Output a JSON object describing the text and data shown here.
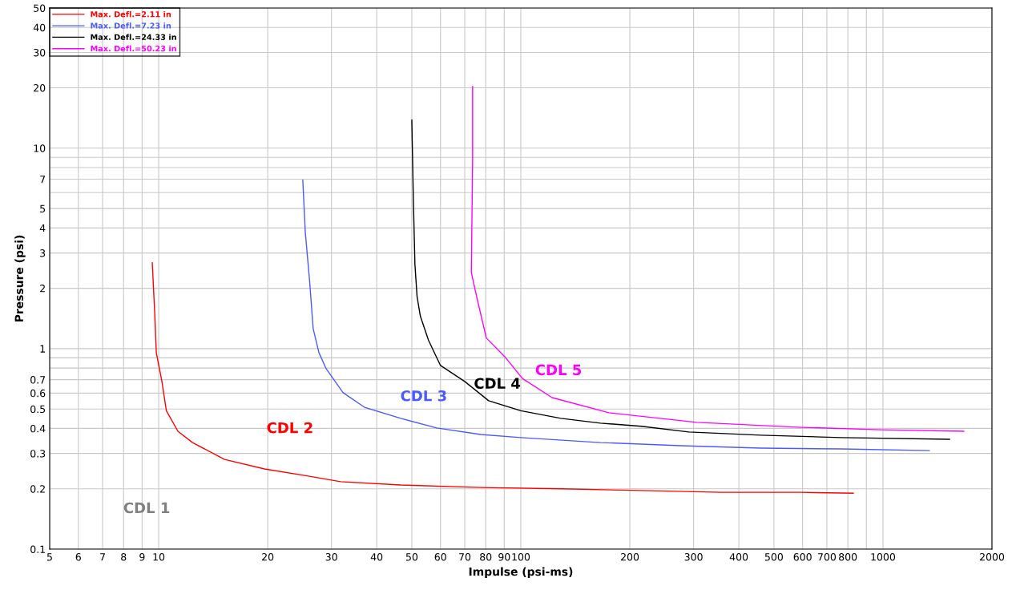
{
  "chart_data": {
    "type": "line",
    "xlabel": "Impulse (psi-ms)",
    "ylabel": "Pressure (psi)",
    "log": "xy",
    "grid": true,
    "legend": "top left",
    "line_style": "solid",
    "marker": "none",
    "xlim": [
      5,
      2000
    ],
    "ylim": [
      0.1,
      50
    ],
    "xticks": [
      5,
      6,
      7,
      8,
      9,
      10,
      20,
      30,
      40,
      50,
      60,
      70,
      80,
      90,
      100,
      200,
      300,
      400,
      500,
      600,
      700,
      800,
      {
        "value": 900,
        "label": null
      },
      1000,
      2000
    ],
    "yticks": [
      0.1,
      0.2,
      0.3,
      0.4,
      0.5,
      0.6,
      0.7,
      {
        "value": 0.8,
        "label": null
      },
      {
        "value": 0.9,
        "label": null
      },
      1,
      2,
      3,
      4,
      5,
      {
        "value": 6,
        "label": null
      },
      7,
      {
        "value": 8,
        "label": null
      },
      {
        "value": 9,
        "label": null
      },
      10,
      20,
      30,
      40,
      50
    ],
    "series": [
      {
        "name": "Max. Defl.=2.11 in",
        "color": "#ff0000",
        "x": [
          9.6,
          9.75,
          9.85,
          10.2,
          10.5,
          11.3,
          12.4,
          15.2,
          19.6,
          25.3,
          31.8,
          46.6,
          77.5,
          129,
          215,
          357,
          594,
          828
        ],
        "values": [
          2.68,
          1.51,
          0.955,
          0.69,
          0.49,
          0.387,
          0.34,
          0.28,
          0.251,
          0.233,
          0.217,
          0.209,
          0.203,
          0.2,
          0.196,
          0.192,
          0.192,
          0.19
        ]
      },
      {
        "name": "Max. Defl.=7.23 in",
        "color": "#4a5aff",
        "x": [
          25,
          25.4,
          26.1,
          26.7,
          27.7,
          29,
          32.3,
          37,
          46.6,
          58.6,
          77.5,
          100,
          166,
          277,
          460,
          767,
          1343
        ],
        "values": [
          6.92,
          3.8,
          2.19,
          1.26,
          0.955,
          0.794,
          0.603,
          0.51,
          0.449,
          0.402,
          0.373,
          0.36,
          0.34,
          0.328,
          0.319,
          0.316,
          0.31
        ]
      },
      {
        "name": "Max. Defl.=24.33 in",
        "color": "#000000",
        "x": [
          50,
          50.5,
          51,
          51.7,
          52.8,
          55.6,
          60,
          70,
          81.5,
          100,
          129,
          166,
          215,
          291,
          460,
          767,
          1527
        ],
        "values": [
          13.8,
          5.5,
          2.63,
          1.82,
          1.45,
          1.1,
          0.824,
          0.686,
          0.55,
          0.49,
          0.449,
          0.425,
          0.41,
          0.384,
          0.37,
          0.36,
          0.353
        ]
      },
      {
        "name": "Max. Defl.=50.23 in",
        "color": "#ff00ff",
        "x": [
          73.6,
          73.6,
          73,
          75.5,
          80.3,
          90.3,
          101,
          122,
          175,
          306,
          594,
          988,
          1672
        ],
        "values": [
          20.3,
          8.7,
          2.4,
          1.82,
          1.13,
          0.912,
          0.71,
          0.57,
          0.479,
          0.429,
          0.405,
          0.394,
          0.387
        ]
      }
    ],
    "annotations": [
      "CDL 1",
      "CDL 2",
      "CDL 3",
      "CDL 4",
      "CDL 5"
    ]
  }
}
